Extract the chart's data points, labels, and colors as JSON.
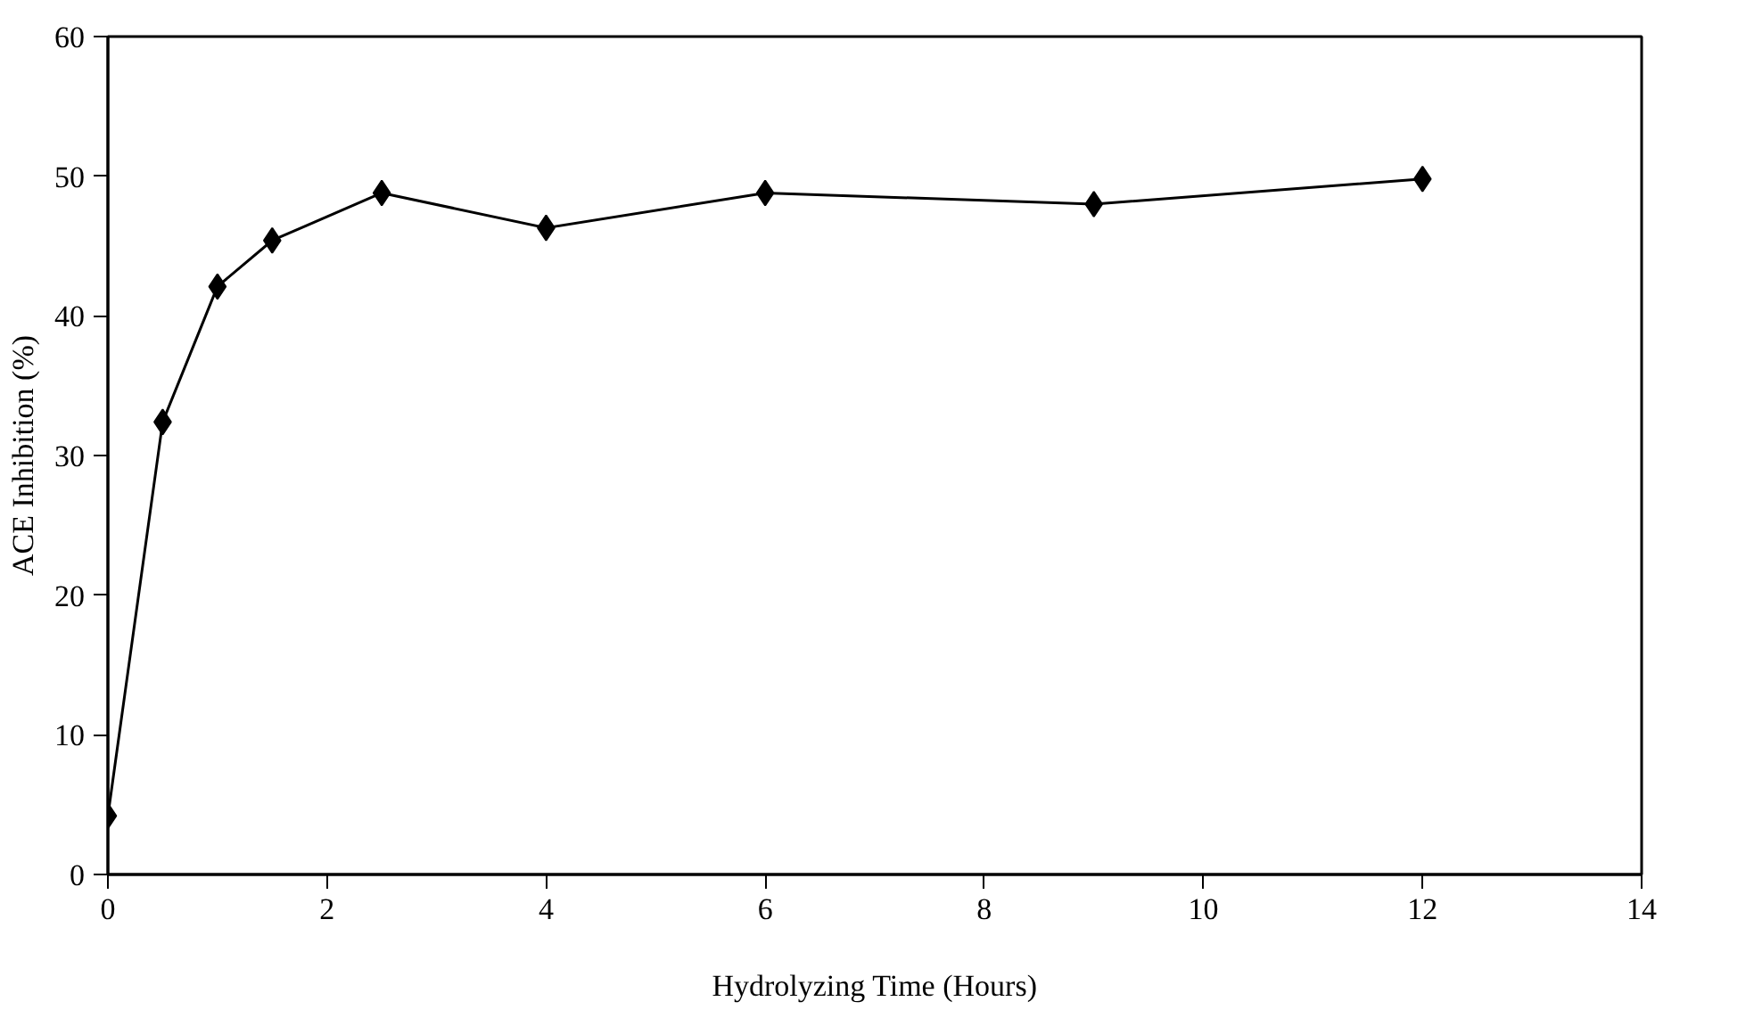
{
  "chart_data": {
    "type": "line",
    "xlabel": "Hydrolyzing Time (Hours)",
    "ylabel": "ACE Inhibition (%)",
    "x": [
      0,
      0.5,
      1,
      1.5,
      2.5,
      4,
      6,
      9,
      12
    ],
    "series": [
      {
        "color": "#000000",
        "values": [
          4.2,
          32.4,
          42.1,
          45.4,
          48.8,
          46.3,
          48.8,
          48.0,
          49.8
        ]
      }
    ],
    "xlim": [
      0,
      14
    ],
    "xticks": [
      0,
      2,
      4,
      6,
      8,
      10,
      12,
      14
    ],
    "ylim": [
      0,
      60
    ],
    "yticks": [
      0,
      10,
      20,
      30,
      40,
      50,
      60
    ],
    "marker": "diamond",
    "line_style": "solid"
  }
}
